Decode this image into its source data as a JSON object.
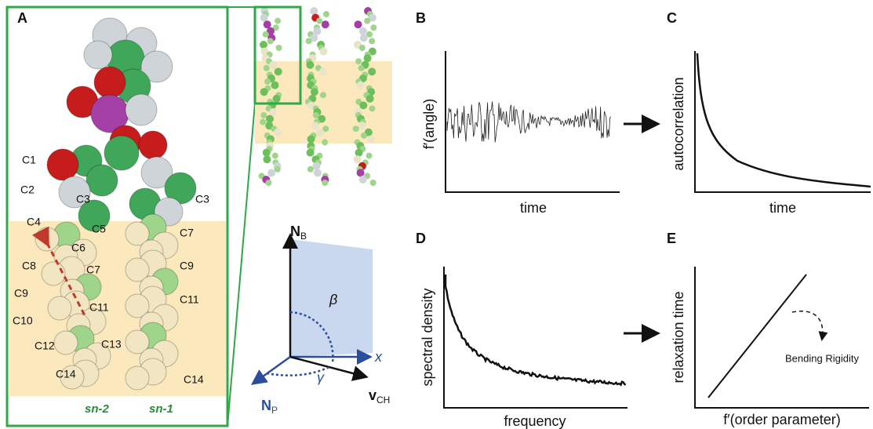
{
  "panel_a": {
    "label": "A",
    "atoms": [
      "C1",
      "C2",
      "C3",
      "C4",
      "C5",
      "C6",
      "C7",
      "C8",
      "C9",
      "C10",
      "C11",
      "C12",
      "C13",
      "C14",
      "C3",
      "C7",
      "C9",
      "C11",
      "C14"
    ],
    "chains": [
      "sn-2",
      "sn-1"
    ]
  },
  "vector_diagram": {
    "normal_bilayer": {
      "main": "N",
      "sub": "B"
    },
    "angle_beta": "β",
    "axis_x": "x",
    "angle_gamma": "γ",
    "normal_plane": {
      "main": "N",
      "sub": "P"
    },
    "vector_ch": {
      "main": "v",
      "sub": "CH"
    }
  },
  "panel_b": {
    "label": "B",
    "ylabel": "f′(angle)",
    "xlabel": "time"
  },
  "panel_c": {
    "label": "C",
    "ylabel": "autocorrelation",
    "xlabel": "time"
  },
  "panel_d": {
    "label": "D",
    "ylabel": "spectral density",
    "xlabel": "frequency"
  },
  "panel_e": {
    "label": "E",
    "ylabel": "relaxation time",
    "xlabel": "f′(order parameter)",
    "annotation": "Bending Rigidity"
  }
}
